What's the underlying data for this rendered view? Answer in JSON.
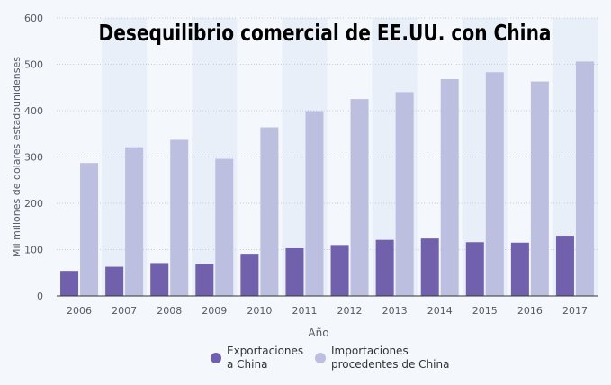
{
  "chart_data": {
    "type": "bar",
    "title": "Desequilibrio comercial de EE.UU. con China",
    "xlabel": "Año",
    "ylabel": "Mil millones de dolares estadounidenses",
    "ylim": [
      0,
      600
    ],
    "yticks": [
      0,
      100,
      200,
      300,
      400,
      500,
      600
    ],
    "grid": true,
    "legend_position": "bottom",
    "categories": [
      "2006",
      "2007",
      "2008",
      "2009",
      "2010",
      "2011",
      "2012",
      "2013",
      "2014",
      "2015",
      "2016",
      "2017"
    ],
    "series": [
      {
        "name": "Exportaciones\na China",
        "name_lines": [
          "Exportaciones",
          "a China"
        ],
        "color": "#7160ab",
        "values": [
          54,
          63,
          71,
          69,
          91,
          103,
          110,
          121,
          124,
          116,
          115,
          130
        ]
      },
      {
        "name": "Importaciones\nprocedentes de China",
        "name_lines": [
          "Importaciones",
          "procedentes de China"
        ],
        "color": "#bcbfe0",
        "values": [
          287,
          321,
          337,
          296,
          364,
          399,
          425,
          440,
          468,
          483,
          463,
          506
        ]
      }
    ]
  }
}
